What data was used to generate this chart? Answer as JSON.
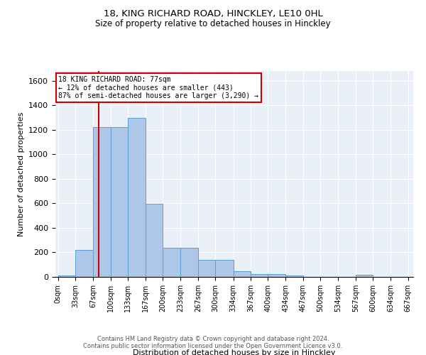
{
  "title1": "18, KING RICHARD ROAD, HINCKLEY, LE10 0HL",
  "title2": "Size of property relative to detached houses in Hinckley",
  "xlabel": "Distribution of detached houses by size in Hinckley",
  "ylabel": "Number of detached properties",
  "footer1": "Contains HM Land Registry data © Crown copyright and database right 2024.",
  "footer2": "Contains public sector information licensed under the Open Government Licence v3.0.",
  "annotation_line1": "18 KING RICHARD ROAD: 77sqm",
  "annotation_line2": "← 12% of detached houses are smaller (443)",
  "annotation_line3": "87% of semi-detached houses are larger (3,290) →",
  "property_size": 77,
  "bin_edges": [
    0,
    33,
    67,
    100,
    133,
    167,
    200,
    233,
    267,
    300,
    334,
    367,
    400,
    434,
    467,
    500,
    534,
    567,
    600,
    634,
    667
  ],
  "bar_heights": [
    10,
    220,
    1225,
    1225,
    1300,
    595,
    235,
    235,
    140,
    140,
    45,
    25,
    25,
    10,
    0,
    0,
    0,
    20,
    0,
    0
  ],
  "bar_color": "#aec6e8",
  "bar_edge_color": "#5a9fd4",
  "red_line_color": "#cc0000",
  "annotation_box_color": "#cc0000",
  "background_color": "#eaf0f8",
  "ylim": [
    0,
    1680
  ],
  "yticks": [
    0,
    200,
    400,
    600,
    800,
    1000,
    1200,
    1400,
    1600
  ],
  "figsize": [
    6.0,
    5.0
  ],
  "dpi": 100
}
